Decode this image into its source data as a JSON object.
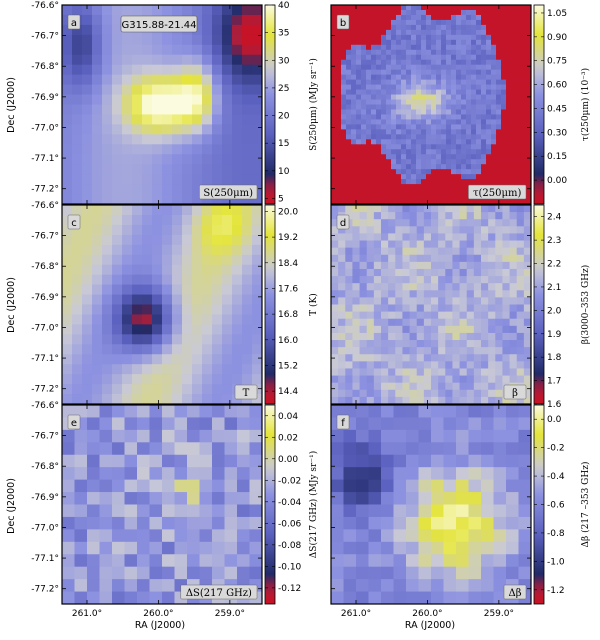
{
  "chart_data": {
    "type": "heatmap",
    "source_label": "G315.88-21.44",
    "xlabel": "RA (J2000)",
    "ylabel": "Dec (J2000)",
    "x_ticks": [
      "261.0°",
      "260.0°",
      "259.0°"
    ],
    "y_ticks": [
      "-76.6°",
      "-76.7°",
      "-76.8°",
      "-76.9°",
      "-77.0°",
      "-77.1°",
      "-77.2°"
    ],
    "colors": {
      "low": "#cc1122",
      "dark": "#202a66",
      "mid": "#8a8fe0",
      "pale": "#c9c9d6",
      "high": "#e4e43a",
      "top": "#fbfbe0"
    },
    "panels": [
      {
        "id": "a",
        "quantity": "S(250μm)",
        "cbar_label": "S(250μm) (MJy sr⁻¹)",
        "ticks": [
          "40",
          "35",
          "30",
          "25",
          "20",
          "15",
          "10",
          "5"
        ],
        "cmin": 4,
        "cmax": 40,
        "content": "thermal dust emission brightness map"
      },
      {
        "id": "b",
        "quantity": "τ(250μm)",
        "cbar_label": "τ(250μm) (10⁻³)",
        "ticks": [
          "1.05",
          "0.90",
          "0.75",
          "0.60",
          "0.45",
          "0.30",
          "0.15",
          "0.00"
        ],
        "cmin": -0.15,
        "cmax": 1.1,
        "content": "optical depth map"
      },
      {
        "id": "c",
        "quantity": "T",
        "cbar_label": "T (K)",
        "ticks": [
          "20.0",
          "19.2",
          "18.4",
          "17.6",
          "16.8",
          "16.0",
          "15.2",
          "14.4"
        ],
        "cmin": 14.0,
        "cmax": 20.2,
        "content": "dust temperature map"
      },
      {
        "id": "d",
        "quantity": "β",
        "cbar_label": "β(3000–353 GHz)",
        "ticks": [
          "2.4",
          "2.3",
          "2.2",
          "2.1",
          "2.0",
          "1.9",
          "1.8",
          "1.7",
          "1.6"
        ],
        "cmin": 1.6,
        "cmax": 2.45,
        "content": "spectral index map"
      },
      {
        "id": "e",
        "quantity": "ΔS(217 GHz)",
        "cbar_label": "ΔS(217 GHz) (MJy sr⁻¹)",
        "ticks": [
          "0.04",
          "0.02",
          "0.00",
          "-0.02",
          "-0.04",
          "-0.06",
          "-0.08",
          "-0.10",
          "-0.12"
        ],
        "cmin": -0.135,
        "cmax": 0.05,
        "content": "217 GHz residual map"
      },
      {
        "id": "f",
        "quantity": "Δβ",
        "cbar_label": "Δβ (217 –353 GHz)",
        "ticks": [
          "0.0",
          "-0.2",
          "-0.4",
          "-0.6",
          "-0.8",
          "-1.0",
          "-1.2"
        ],
        "cmin": -1.3,
        "cmax": 0.1,
        "content": "spectral index difference map"
      }
    ]
  }
}
